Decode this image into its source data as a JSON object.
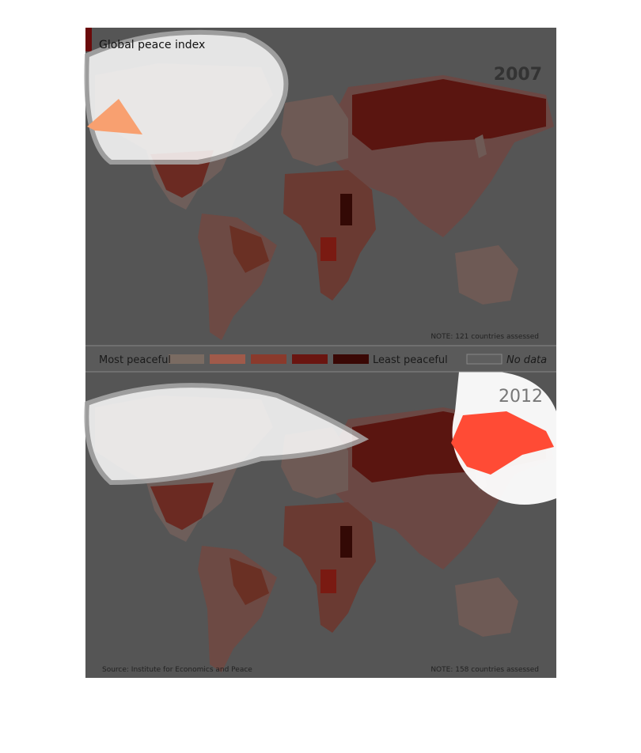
{
  "header": {
    "title": "Global peace index"
  },
  "maps": [
    {
      "year": "2007",
      "note": "NOTE: 121 countries assessed"
    },
    {
      "year": "2012",
      "note": "NOTE: 158 countries assessed"
    }
  ],
  "legend": {
    "most": "Most peaceful",
    "least": "Least peaceful",
    "no_data": "No data"
  },
  "footer": {
    "source": "Source: Institute for Economics and Peace"
  }
}
